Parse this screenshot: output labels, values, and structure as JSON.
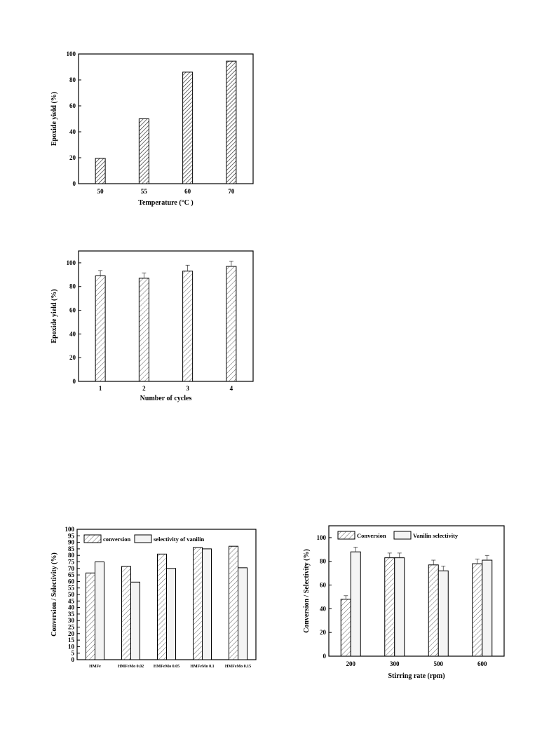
{
  "chart_data": [
    {
      "type": "bar",
      "xlabel": "Temperature (°C )",
      "ylabel": "Epoxide yield (%)",
      "categories": [
        "50",
        "55",
        "60",
        "70"
      ],
      "series": [
        {
          "values": [
            19.5,
            50,
            86,
            94.5
          ]
        }
      ],
      "ylim": [
        0,
        100
      ],
      "yticks": [
        "0",
        "20",
        "40",
        "60",
        "80",
        "100"
      ],
      "fill": "hatched"
    },
    {
      "type": "bar",
      "xlabel": "Number of cycles",
      "ylabel": "Epoxide yield (%)",
      "categories": [
        "1",
        "2",
        "3",
        "4"
      ],
      "series": [
        {
          "values": [
            89,
            87,
            93,
            97
          ],
          "errors": [
            4.5,
            4.5,
            5,
            4.5
          ]
        }
      ],
      "ylim": [
        0,
        110
      ],
      "yticks": [
        "0",
        "20",
        "40",
        "60",
        "80",
        "100"
      ],
      "fill": "hatched"
    },
    {
      "type": "bar",
      "xlabel": "",
      "ylabel": "Conversion / Selectivity (%)",
      "categories": [
        "HMFe",
        "HMFeMo 0.02",
        "HMFeMo 0.05",
        "HMFeMo 0.1",
        "HMFeMo 0.15"
      ],
      "series": [
        {
          "name": "conversion",
          "values": [
            66.5,
            71.5,
            81,
            86,
            87
          ]
        },
        {
          "name": "selectivity of vanilin",
          "values": [
            75,
            59.5,
            70,
            85,
            70.5
          ]
        }
      ],
      "ylim": [
        0,
        100
      ],
      "yticks": [
        "0",
        "5",
        "10",
        "15",
        "20",
        "25",
        "30",
        "35",
        "40",
        "45",
        "50",
        "55",
        "60",
        "65",
        "70",
        "75",
        "80",
        "85",
        "90",
        "95",
        "100"
      ],
      "legend_position": "top-left"
    },
    {
      "type": "bar",
      "xlabel": "Stirring rate (rpm)",
      "ylabel": "Conversion / Selectivity (%)",
      "categories": [
        "200",
        "300",
        "500",
        "600"
      ],
      "series": [
        {
          "name": "Conversion",
          "values": [
            48,
            83,
            77,
            78
          ],
          "errors": [
            3,
            4,
            4,
            4
          ]
        },
        {
          "name": "Vanilin selectivity",
          "values": [
            88,
            83,
            72,
            81
          ],
          "errors": [
            4,
            4,
            4,
            4
          ]
        }
      ],
      "ylim": [
        0,
        110
      ],
      "yticks": [
        "0",
        "20",
        "40",
        "60",
        "80",
        "100"
      ],
      "legend_position": "top-left"
    }
  ]
}
